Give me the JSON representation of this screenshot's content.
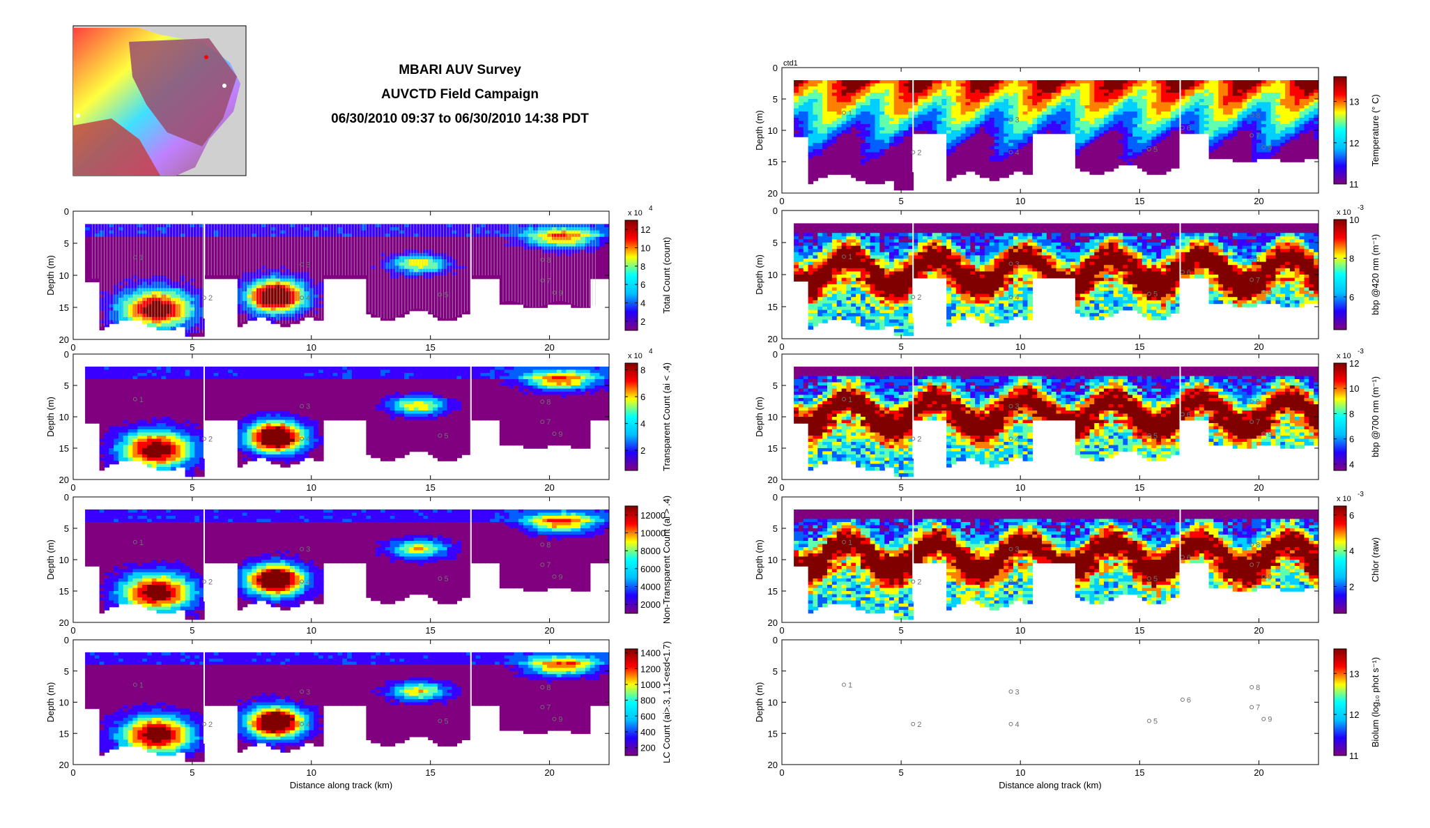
{
  "header": {
    "title_lines": [
      "MBARI AUV Survey",
      "AUVCTD Field Campaign",
      "06/30/2010 09:37 to 06/30/2010 14:38 PDT"
    ]
  },
  "map": {
    "icon": "bathymetry-map-icon"
  },
  "colors": {
    "background": "#ffffff",
    "axis": "#000000",
    "waypoint": "#707070",
    "colormap": [
      "#800080",
      "#2000ff",
      "#00c0ff",
      "#00ffff",
      "#ffff00",
      "#ff0000",
      "#800000"
    ]
  },
  "chart_data": [
    {
      "type": "heatmap",
      "id": "total-count",
      "xlabel": "",
      "ylabel": "Depth (m)",
      "clabel": "Total Count (count)",
      "exponent": "x 10",
      "exponent_pow": "4",
      "xticks": [
        0,
        5,
        10,
        15,
        20
      ],
      "yticks": [
        0,
        5,
        10,
        15,
        20
      ],
      "xlim": [
        0,
        22.5
      ],
      "ylim": [
        20,
        0
      ],
      "cticks": [
        "2",
        "4",
        "6",
        "8",
        "10",
        "12"
      ],
      "clim": [
        1,
        13
      ],
      "samples": true
    },
    {
      "type": "heatmap",
      "id": "transparent-count",
      "xlabel": "",
      "ylabel": "Depth (m)",
      "clabel": "Transparent Count (ai < .4)",
      "exponent": "x 10",
      "exponent_pow": "4",
      "xticks": [
        0,
        5,
        10,
        15,
        20
      ],
      "yticks": [
        0,
        5,
        10,
        15,
        20
      ],
      "xlim": [
        0,
        22.5
      ],
      "ylim": [
        20,
        0
      ],
      "cticks": [
        "2",
        "4",
        "6",
        "8"
      ],
      "clim": [
        0.5,
        8.5
      ]
    },
    {
      "type": "heatmap",
      "id": "non-transparent-count",
      "xlabel": "",
      "ylabel": "Depth (m)",
      "clabel": "Non-Transparent Count (ai > .4)",
      "xticks": [
        0,
        5,
        10,
        15,
        20
      ],
      "yticks": [
        0,
        5,
        10,
        15,
        20
      ],
      "xlim": [
        0,
        22.5
      ],
      "ylim": [
        20,
        0
      ],
      "cticks": [
        "2000",
        "4000",
        "6000",
        "8000",
        "10000",
        "12000"
      ],
      "clim": [
        1000,
        13000
      ]
    },
    {
      "type": "heatmap",
      "id": "lc-count",
      "xlabel": "Distance along track (km)",
      "ylabel": "Depth (m)",
      "clabel": "LC Count (ai>.3, 1.1<esd<1.7)",
      "xticks": [
        0,
        5,
        10,
        15,
        20
      ],
      "yticks": [
        0,
        5,
        10,
        15,
        20
      ],
      "xlim": [
        0,
        22.5
      ],
      "ylim": [
        20,
        0
      ],
      "cticks": [
        "200",
        "400",
        "600",
        "800",
        "1000",
        "1200",
        "1400"
      ],
      "clim": [
        100,
        1450
      ]
    },
    {
      "type": "heatmap",
      "id": "temperature",
      "ctd_label": "ctd1",
      "xlabel": "",
      "ylabel": "Depth (m)",
      "clabel": "Temperature (° C)",
      "xticks": [
        0,
        5,
        10,
        15,
        20
      ],
      "yticks": [
        0,
        5,
        10,
        15,
        20
      ],
      "xlim": [
        0,
        22.5
      ],
      "ylim": [
        20,
        0
      ],
      "cticks": [
        "11",
        "12",
        "13"
      ],
      "clim": [
        11,
        13.6
      ]
    },
    {
      "type": "heatmap",
      "id": "bbp420",
      "xlabel": "",
      "ylabel": "Depth (m)",
      "clabel": "bbp @420 nm (m⁻¹)",
      "exponent": "x 10",
      "exponent_pow": "-3",
      "xticks": [
        0,
        5,
        10,
        15,
        20
      ],
      "yticks": [
        0,
        5,
        10,
        15,
        20
      ],
      "xlim": [
        0,
        22.5
      ],
      "ylim": [
        20,
        0
      ],
      "cticks": [
        "6",
        "8",
        "10"
      ],
      "clim": [
        4.3,
        10
      ]
    },
    {
      "type": "heatmap",
      "id": "bbp700",
      "xlabel": "",
      "ylabel": "Depth (m)",
      "clabel": "bbp @700 nm (m⁻¹)",
      "exponent": "x 10",
      "exponent_pow": "-3",
      "xticks": [
        0,
        5,
        10,
        15,
        20
      ],
      "yticks": [
        0,
        5,
        10,
        15,
        20
      ],
      "xlim": [
        0,
        22.5
      ],
      "ylim": [
        20,
        0
      ],
      "cticks": [
        "4",
        "6",
        "8",
        "10",
        "12"
      ],
      "clim": [
        3.5,
        12
      ]
    },
    {
      "type": "heatmap",
      "id": "chlor",
      "xlabel": "",
      "ylabel": "Depth (m)",
      "clabel": "Chlor (raw)",
      "exponent": "x 10",
      "exponent_pow": "-3",
      "xticks": [
        0,
        5,
        10,
        15,
        20
      ],
      "yticks": [
        0,
        5,
        10,
        15,
        20
      ],
      "xlim": [
        0,
        22.5
      ],
      "ylim": [
        20,
        0
      ],
      "cticks": [
        "2",
        "4",
        "6"
      ],
      "clim": [
        0.5,
        6.5
      ]
    },
    {
      "type": "scatter",
      "id": "biolum",
      "xlabel": "Distance along track (km)",
      "ylabel": "Depth (m)",
      "clabel": "Biolum (log₁₀ phot s⁻¹)",
      "xticks": [
        0,
        5,
        10,
        15,
        20
      ],
      "yticks": [
        0,
        5,
        10,
        15,
        20
      ],
      "xlim": [
        0,
        22.5
      ],
      "ylim": [
        20,
        0
      ],
      "cticks": [
        "11",
        "12",
        "13"
      ],
      "clim": [
        11,
        13.6
      ],
      "empty": true
    }
  ],
  "waypoints": [
    {
      "label": "1",
      "x": 2.6,
      "y": 7.2
    },
    {
      "label": "2",
      "x": 5.5,
      "y": 13.5
    },
    {
      "label": "3",
      "x": 9.6,
      "y": 8.3
    },
    {
      "label": "4",
      "x": 9.6,
      "y": 13.5
    },
    {
      "label": "5",
      "x": 15.4,
      "y": 13.0
    },
    {
      "label": "6",
      "x": 16.8,
      "y": 9.6
    },
    {
      "label": "7",
      "x": 19.7,
      "y": 10.8
    },
    {
      "label": "8",
      "x": 19.7,
      "y": 7.6
    },
    {
      "label": "9",
      "x": 20.2,
      "y": 12.7
    }
  ]
}
